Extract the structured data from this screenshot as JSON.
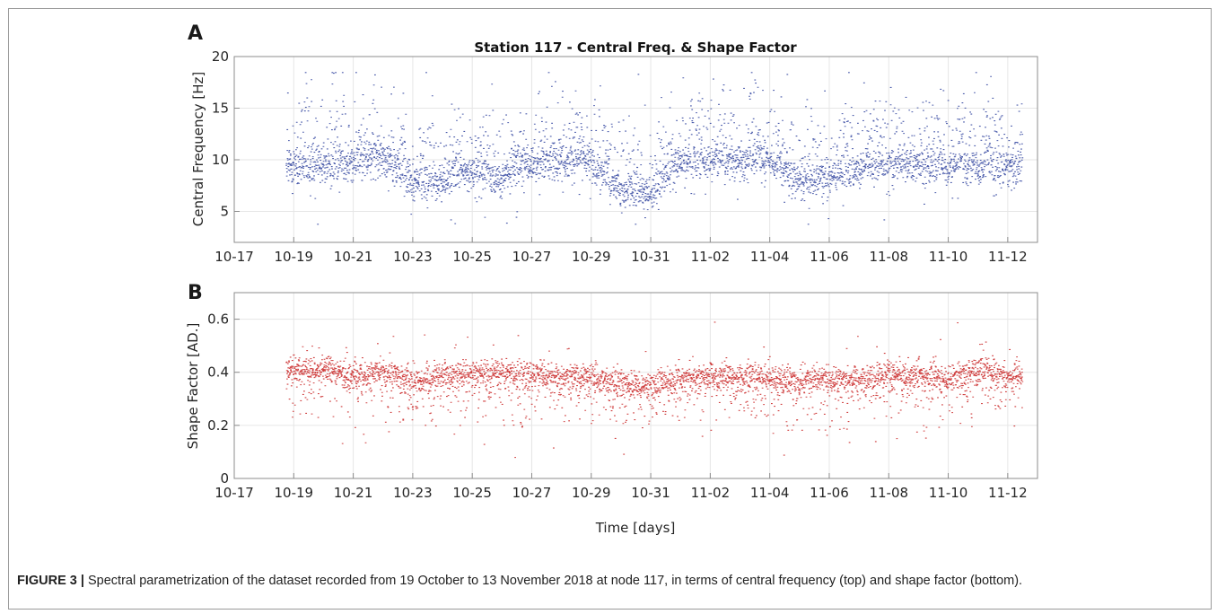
{
  "chart_data": [
    {
      "panel": "A",
      "type": "scatter",
      "title": "Station 117 - Central Freq. & Shape Factor",
      "ylabel": "Central Frequency [Hz]",
      "xlabel": "",
      "x_ticks": [
        "10-17",
        "10-19",
        "10-21",
        "10-23",
        "10-25",
        "10-27",
        "10-29",
        "10-31",
        "11-02",
        "11-04",
        "11-06",
        "11-08",
        "11-10",
        "11-12"
      ],
      "xlim": [
        "2018-10-17",
        "2018-11-13"
      ],
      "ylim": [
        2,
        20
      ],
      "y_ticks": [
        5,
        10,
        15,
        20
      ],
      "grid": true,
      "color": "#2b3f9c",
      "x_start": "2018-10-18 18:00",
      "x_end": "2018-11-12 12:00",
      "series": [
        {
          "values_note": "dense per-window estimates; approximate baseline and spread per half-day",
          "x": [
            "2018-10-19",
            "2018-10-20",
            "2018-10-21",
            "2018-10-22",
            "2018-10-23",
            "2018-10-24",
            "2018-10-25",
            "2018-10-26",
            "2018-10-27",
            "2018-10-28",
            "2018-10-29",
            "2018-10-30",
            "2018-10-31",
            "2018-11-01",
            "2018-11-02",
            "2018-11-03",
            "2018-11-04",
            "2018-11-05",
            "2018-11-06",
            "2018-11-07",
            "2018-11-08",
            "2018-11-09",
            "2018-11-10",
            "2018-11-11",
            "2018-11-12"
          ],
          "baseline": [
            9.2,
            9.5,
            9.8,
            10.2,
            8.0,
            7.9,
            9.0,
            8.2,
            9.6,
            9.8,
            9.9,
            7.0,
            6.8,
            9.8,
            9.9,
            9.8,
            10.0,
            8.0,
            8.3,
            9.2,
            9.6,
            9.5,
            9.4,
            9.3,
            9.3
          ]
        }
      ]
    },
    {
      "panel": "B",
      "type": "scatter",
      "title": "",
      "ylabel": "Shape Factor [AD.]",
      "xlabel": "Time [days]",
      "x_ticks": [
        "10-17",
        "10-19",
        "10-21",
        "10-23",
        "10-25",
        "10-27",
        "10-29",
        "10-31",
        "11-02",
        "11-04",
        "11-06",
        "11-08",
        "11-10",
        "11-12"
      ],
      "xlim": [
        "2018-10-17",
        "2018-11-13"
      ],
      "ylim": [
        0,
        0.7
      ],
      "y_ticks": [
        "0",
        "0.2",
        "0.4",
        "0.6"
      ],
      "grid": true,
      "color": "#c81e1e",
      "x_start": "2018-10-18 18:00",
      "x_end": "2018-11-12 12:00",
      "series": [
        {
          "x": [
            "2018-10-19",
            "2018-10-20",
            "2018-10-21",
            "2018-10-22",
            "2018-10-23",
            "2018-10-24",
            "2018-10-25",
            "2018-10-26",
            "2018-10-27",
            "2018-10-28",
            "2018-10-29",
            "2018-10-30",
            "2018-10-31",
            "2018-11-01",
            "2018-11-02",
            "2018-11-03",
            "2018-11-04",
            "2018-11-05",
            "2018-11-06",
            "2018-11-07",
            "2018-11-08",
            "2018-11-09",
            "2018-11-10",
            "2018-11-11",
            "2018-11-12"
          ],
          "baseline": [
            0.41,
            0.42,
            0.39,
            0.41,
            0.37,
            0.39,
            0.4,
            0.4,
            0.4,
            0.39,
            0.39,
            0.36,
            0.35,
            0.38,
            0.39,
            0.39,
            0.38,
            0.37,
            0.38,
            0.38,
            0.39,
            0.39,
            0.38,
            0.41,
            0.39
          ]
        }
      ]
    }
  ],
  "caption": {
    "label": "FIGURE 3 |",
    "text": " Spectral parametrization of the dataset recorded from 19 October to 13 November 2018 at node 117, in terms of central frequency (top) and shape factor (bottom)."
  }
}
